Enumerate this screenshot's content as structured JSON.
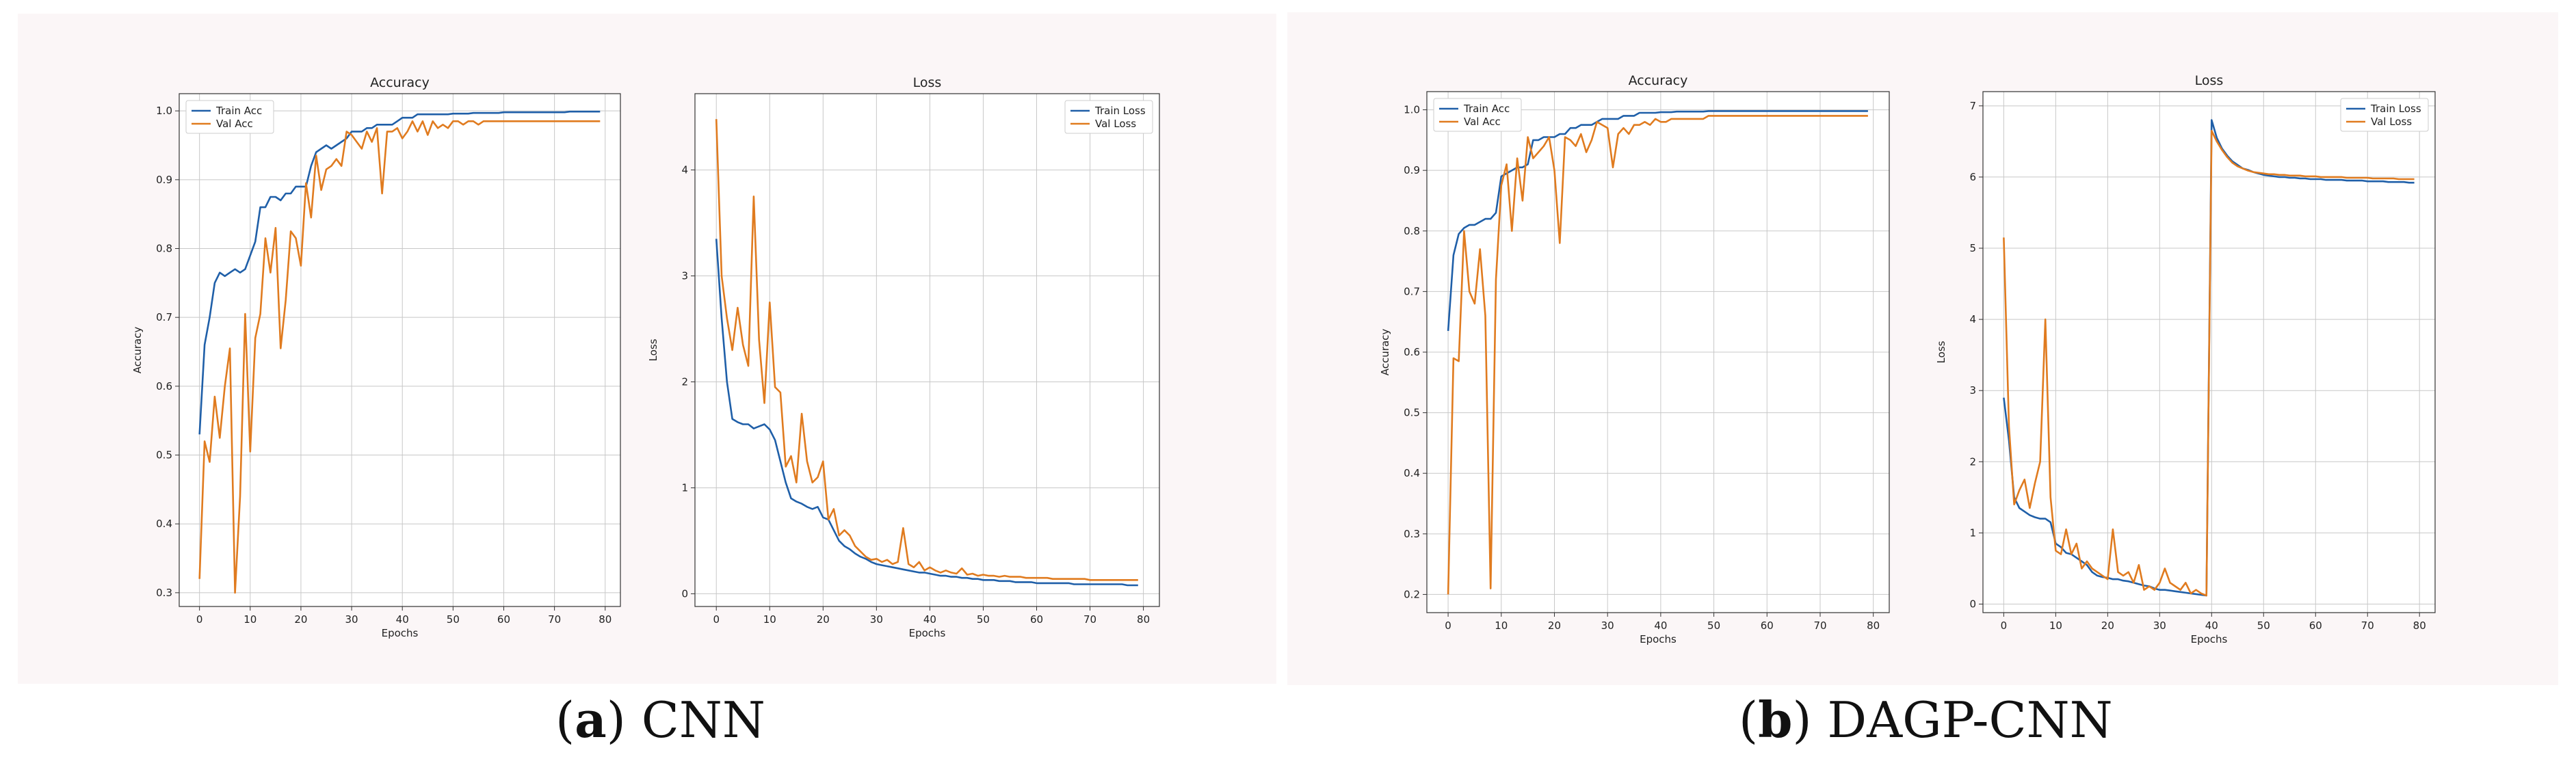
{
  "captions": [
    {
      "letter": "a",
      "text": "CNN"
    },
    {
      "letter": "b",
      "text": "DAGP-CNN"
    }
  ],
  "colors": {
    "train": "#1f5fa8",
    "val": "#e07b1f",
    "panel_bg": "#fbf6f7"
  },
  "chart_data": [
    {
      "type": "line",
      "panel": "a",
      "title": "Accuracy",
      "xlabel": "Epochs",
      "ylabel": "Accuracy",
      "xlim": [
        -4,
        83
      ],
      "ylim": [
        0.28,
        1.025
      ],
      "xticks": [
        0,
        10,
        20,
        30,
        40,
        50,
        60,
        70,
        80
      ],
      "yticks": [
        0.3,
        0.4,
        0.5,
        0.6,
        0.7,
        0.8,
        0.9,
        1.0
      ],
      "ytick_labels": [
        "0.3",
        "0.4",
        "0.5",
        "0.6",
        "0.7",
        "0.8",
        "0.9",
        "1.0"
      ],
      "legend": "top-left",
      "grid": true,
      "series": [
        {
          "name": "Train Acc",
          "key": "train",
          "values": [
            0.53,
            0.66,
            0.7,
            0.75,
            0.765,
            0.76,
            0.765,
            0.77,
            0.765,
            0.77,
            0.79,
            0.81,
            0.86,
            0.86,
            0.875,
            0.875,
            0.87,
            0.88,
            0.88,
            0.89,
            0.89,
            0.89,
            0.92,
            0.94,
            0.945,
            0.95,
            0.945,
            0.95,
            0.955,
            0.96,
            0.97,
            0.97,
            0.97,
            0.975,
            0.975,
            0.98,
            0.98,
            0.98,
            0.98,
            0.985,
            0.99,
            0.99,
            0.99,
            0.995,
            0.995,
            0.995,
            0.995,
            0.995,
            0.995,
            0.995,
            0.996,
            0.996,
            0.996,
            0.996,
            0.997,
            0.997,
            0.997,
            0.997,
            0.997,
            0.997,
            0.998,
            0.998,
            0.998,
            0.998,
            0.998,
            0.998,
            0.998,
            0.998,
            0.998,
            0.998,
            0.998,
            0.998,
            0.998,
            0.999,
            0.999,
            0.999,
            0.999,
            0.999,
            0.999,
            0.999
          ]
        },
        {
          "name": "Val Acc",
          "key": "val",
          "values": [
            0.32,
            0.52,
            0.49,
            0.585,
            0.525,
            0.6,
            0.655,
            0.3,
            0.44,
            0.705,
            0.505,
            0.67,
            0.705,
            0.815,
            0.765,
            0.83,
            0.655,
            0.725,
            0.825,
            0.815,
            0.775,
            0.895,
            0.845,
            0.935,
            0.885,
            0.915,
            0.92,
            0.93,
            0.92,
            0.97,
            0.965,
            0.955,
            0.945,
            0.97,
            0.955,
            0.975,
            0.88,
            0.97,
            0.97,
            0.975,
            0.96,
            0.97,
            0.985,
            0.97,
            0.985,
            0.965,
            0.985,
            0.975,
            0.98,
            0.975,
            0.985,
            0.985,
            0.98,
            0.985,
            0.985,
            0.98,
            0.985,
            0.985,
            0.985,
            0.985,
            0.985,
            0.985,
            0.985,
            0.985,
            0.985,
            0.985,
            0.985,
            0.985,
            0.985,
            0.985,
            0.985,
            0.985,
            0.985,
            0.985,
            0.985,
            0.985,
            0.985,
            0.985,
            0.985,
            0.985
          ]
        }
      ]
    },
    {
      "type": "line",
      "panel": "a",
      "title": "Loss",
      "xlabel": "Epochs",
      "ylabel": "Loss",
      "xlim": [
        -4,
        83
      ],
      "ylim": [
        -0.12,
        4.72
      ],
      "xticks": [
        0,
        10,
        20,
        30,
        40,
        50,
        60,
        70,
        80
      ],
      "yticks": [
        0,
        1,
        2,
        3,
        4
      ],
      "ytick_labels": [
        "0",
        "1",
        "2",
        "3",
        "4"
      ],
      "legend": "top-right",
      "grid": true,
      "series": [
        {
          "name": "Train Loss",
          "key": "train",
          "values": [
            3.35,
            2.6,
            2.0,
            1.65,
            1.62,
            1.6,
            1.6,
            1.56,
            1.58,
            1.6,
            1.55,
            1.45,
            1.25,
            1.05,
            0.9,
            0.87,
            0.85,
            0.82,
            0.8,
            0.82,
            0.72,
            0.7,
            0.6,
            0.5,
            0.45,
            0.42,
            0.38,
            0.35,
            0.33,
            0.3,
            0.28,
            0.27,
            0.26,
            0.25,
            0.24,
            0.23,
            0.22,
            0.21,
            0.2,
            0.2,
            0.19,
            0.18,
            0.17,
            0.17,
            0.16,
            0.16,
            0.15,
            0.15,
            0.14,
            0.14,
            0.13,
            0.13,
            0.13,
            0.12,
            0.12,
            0.12,
            0.11,
            0.11,
            0.11,
            0.11,
            0.1,
            0.1,
            0.1,
            0.1,
            0.1,
            0.1,
            0.1,
            0.09,
            0.09,
            0.09,
            0.09,
            0.09,
            0.09,
            0.09,
            0.09,
            0.09,
            0.09,
            0.08,
            0.08,
            0.08
          ]
        },
        {
          "name": "Val Loss",
          "key": "val",
          "values": [
            4.48,
            3.0,
            2.6,
            2.3,
            2.7,
            2.35,
            2.15,
            3.75,
            2.4,
            1.8,
            2.75,
            1.95,
            1.9,
            1.2,
            1.3,
            1.05,
            1.7,
            1.25,
            1.05,
            1.1,
            1.25,
            0.7,
            0.8,
            0.55,
            0.6,
            0.55,
            0.45,
            0.4,
            0.35,
            0.32,
            0.33,
            0.3,
            0.32,
            0.28,
            0.3,
            0.62,
            0.28,
            0.25,
            0.3,
            0.22,
            0.25,
            0.22,
            0.2,
            0.22,
            0.2,
            0.19,
            0.24,
            0.18,
            0.19,
            0.17,
            0.18,
            0.17,
            0.17,
            0.16,
            0.17,
            0.16,
            0.16,
            0.16,
            0.15,
            0.15,
            0.15,
            0.15,
            0.15,
            0.14,
            0.14,
            0.14,
            0.14,
            0.14,
            0.14,
            0.14,
            0.13,
            0.13,
            0.13,
            0.13,
            0.13,
            0.13,
            0.13,
            0.13,
            0.13,
            0.13
          ]
        }
      ]
    },
    {
      "type": "line",
      "panel": "b",
      "title": "Accuracy",
      "xlabel": "Epochs",
      "ylabel": "Accuracy",
      "xlim": [
        -4,
        83
      ],
      "ylim": [
        0.17,
        1.03
      ],
      "xticks": [
        0,
        10,
        20,
        30,
        40,
        50,
        60,
        70,
        80
      ],
      "yticks": [
        0.2,
        0.3,
        0.4,
        0.5,
        0.6,
        0.7,
        0.8,
        0.9,
        1.0
      ],
      "ytick_labels": [
        "0.2",
        "0.3",
        "0.4",
        "0.5",
        "0.6",
        "0.7",
        "0.8",
        "0.9",
        "1.0"
      ],
      "legend": "top-left",
      "grid": true,
      "series": [
        {
          "name": "Train Acc",
          "key": "train",
          "values": [
            0.635,
            0.76,
            0.795,
            0.805,
            0.81,
            0.81,
            0.815,
            0.82,
            0.82,
            0.83,
            0.89,
            0.895,
            0.9,
            0.905,
            0.905,
            0.91,
            0.95,
            0.95,
            0.955,
            0.955,
            0.955,
            0.96,
            0.96,
            0.97,
            0.97,
            0.975,
            0.975,
            0.975,
            0.98,
            0.985,
            0.985,
            0.985,
            0.985,
            0.99,
            0.99,
            0.99,
            0.995,
            0.995,
            0.995,
            0.995,
            0.996,
            0.996,
            0.996,
            0.997,
            0.997,
            0.997,
            0.997,
            0.997,
            0.997,
            0.998,
            0.998,
            0.998,
            0.998,
            0.998,
            0.998,
            0.998,
            0.998,
            0.998,
            0.998,
            0.998,
            0.998,
            0.998,
            0.998,
            0.998,
            0.998,
            0.998,
            0.998,
            0.998,
            0.998,
            0.998,
            0.998,
            0.998,
            0.998,
            0.998,
            0.998,
            0.998,
            0.998,
            0.998,
            0.998,
            0.998
          ]
        },
        {
          "name": "Val Acc",
          "key": "val",
          "values": [
            0.2,
            0.59,
            0.585,
            0.8,
            0.7,
            0.68,
            0.77,
            0.66,
            0.21,
            0.72,
            0.875,
            0.91,
            0.8,
            0.92,
            0.85,
            0.955,
            0.92,
            0.93,
            0.94,
            0.955,
            0.9,
            0.78,
            0.955,
            0.95,
            0.94,
            0.96,
            0.93,
            0.95,
            0.98,
            0.975,
            0.97,
            0.905,
            0.96,
            0.97,
            0.96,
            0.975,
            0.975,
            0.98,
            0.975,
            0.985,
            0.98,
            0.98,
            0.985,
            0.985,
            0.985,
            0.985,
            0.985,
            0.985,
            0.985,
            0.99,
            0.99,
            0.99,
            0.99,
            0.99,
            0.99,
            0.99,
            0.99,
            0.99,
            0.99,
            0.99,
            0.99,
            0.99,
            0.99,
            0.99,
            0.99,
            0.99,
            0.99,
            0.99,
            0.99,
            0.99,
            0.99,
            0.99,
            0.99,
            0.99,
            0.99,
            0.99,
            0.99,
            0.99,
            0.99,
            0.99
          ]
        }
      ]
    },
    {
      "type": "line",
      "panel": "b",
      "title": "Loss",
      "xlabel": "Epochs",
      "ylabel": "Loss",
      "xlim": [
        -4,
        83
      ],
      "ylim": [
        -0.12,
        7.2
      ],
      "xticks": [
        0,
        10,
        20,
        30,
        40,
        50,
        60,
        70,
        80
      ],
      "yticks": [
        0,
        1,
        2,
        3,
        4,
        5,
        6,
        7
      ],
      "ytick_labels": [
        "0",
        "1",
        "2",
        "3",
        "4",
        "5",
        "6",
        "7"
      ],
      "legend": "top-right",
      "grid": true,
      "series": [
        {
          "name": "Train Loss",
          "key": "train",
          "values": [
            2.9,
            2.3,
            1.5,
            1.35,
            1.3,
            1.25,
            1.22,
            1.2,
            1.2,
            1.15,
            0.85,
            0.8,
            0.72,
            0.7,
            0.65,
            0.6,
            0.55,
            0.45,
            0.4,
            0.38,
            0.37,
            0.35,
            0.35,
            0.33,
            0.32,
            0.3,
            0.28,
            0.26,
            0.25,
            0.22,
            0.2,
            0.2,
            0.19,
            0.18,
            0.17,
            0.16,
            0.15,
            0.14,
            0.13,
            0.12,
            6.8,
            6.55,
            6.4,
            6.3,
            6.22,
            6.17,
            6.12,
            6.1,
            6.07,
            6.05,
            6.03,
            6.02,
            6.01,
            6.0,
            6.0,
            5.99,
            5.99,
            5.98,
            5.98,
            5.97,
            5.97,
            5.97,
            5.96,
            5.96,
            5.96,
            5.96,
            5.95,
            5.95,
            5.95,
            5.95,
            5.94,
            5.94,
            5.94,
            5.94,
            5.93,
            5.93,
            5.93,
            5.93,
            5.92,
            5.92
          ]
        },
        {
          "name": "Val Loss",
          "key": "val",
          "values": [
            5.15,
            2.5,
            1.4,
            1.6,
            1.75,
            1.35,
            1.7,
            2.0,
            4.0,
            1.5,
            0.75,
            0.7,
            1.05,
            0.7,
            0.85,
            0.5,
            0.6,
            0.5,
            0.45,
            0.4,
            0.35,
            1.05,
            0.45,
            0.4,
            0.45,
            0.3,
            0.55,
            0.2,
            0.25,
            0.2,
            0.3,
            0.5,
            0.3,
            0.25,
            0.2,
            0.3,
            0.15,
            0.2,
            0.15,
            0.12,
            6.65,
            6.5,
            6.38,
            6.28,
            6.2,
            6.15,
            6.12,
            6.09,
            6.07,
            6.06,
            6.05,
            6.04,
            6.04,
            6.03,
            6.03,
            6.02,
            6.02,
            6.02,
            6.01,
            6.01,
            6.01,
            6.0,
            6.0,
            6.0,
            6.0,
            6.0,
            5.99,
            5.99,
            5.99,
            5.99,
            5.99,
            5.98,
            5.98,
            5.98,
            5.98,
            5.98,
            5.97,
            5.97,
            5.97,
            5.97
          ]
        }
      ]
    }
  ]
}
